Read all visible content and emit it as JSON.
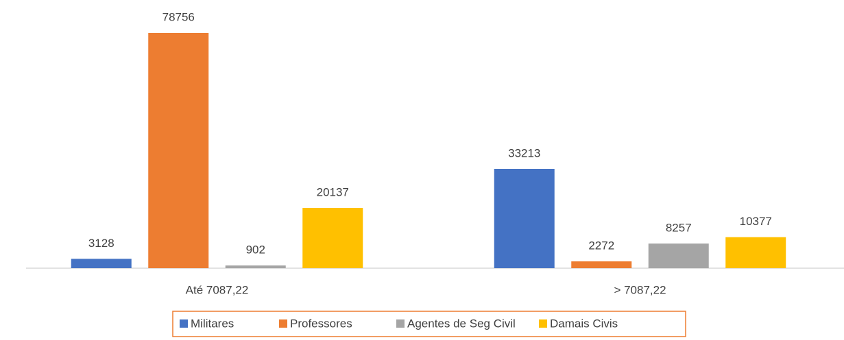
{
  "chart_data": {
    "type": "bar",
    "categories": [
      "Até 7087,22",
      "> 7087,22"
    ],
    "series": [
      {
        "name": "Militares",
        "color": "#4472c4",
        "values": [
          3128,
          33213
        ]
      },
      {
        "name": "Professores",
        "color": "#ed7d31",
        "values": [
          78756,
          2272
        ]
      },
      {
        "name": "Agentes de Seg Civil",
        "color": "#a5a5a5",
        "values": [
          902,
          8257
        ]
      },
      {
        "name": "Damais Civis",
        "color": "#ffc000",
        "values": [
          20137,
          10377
        ]
      }
    ],
    "legend": "bottom"
  }
}
